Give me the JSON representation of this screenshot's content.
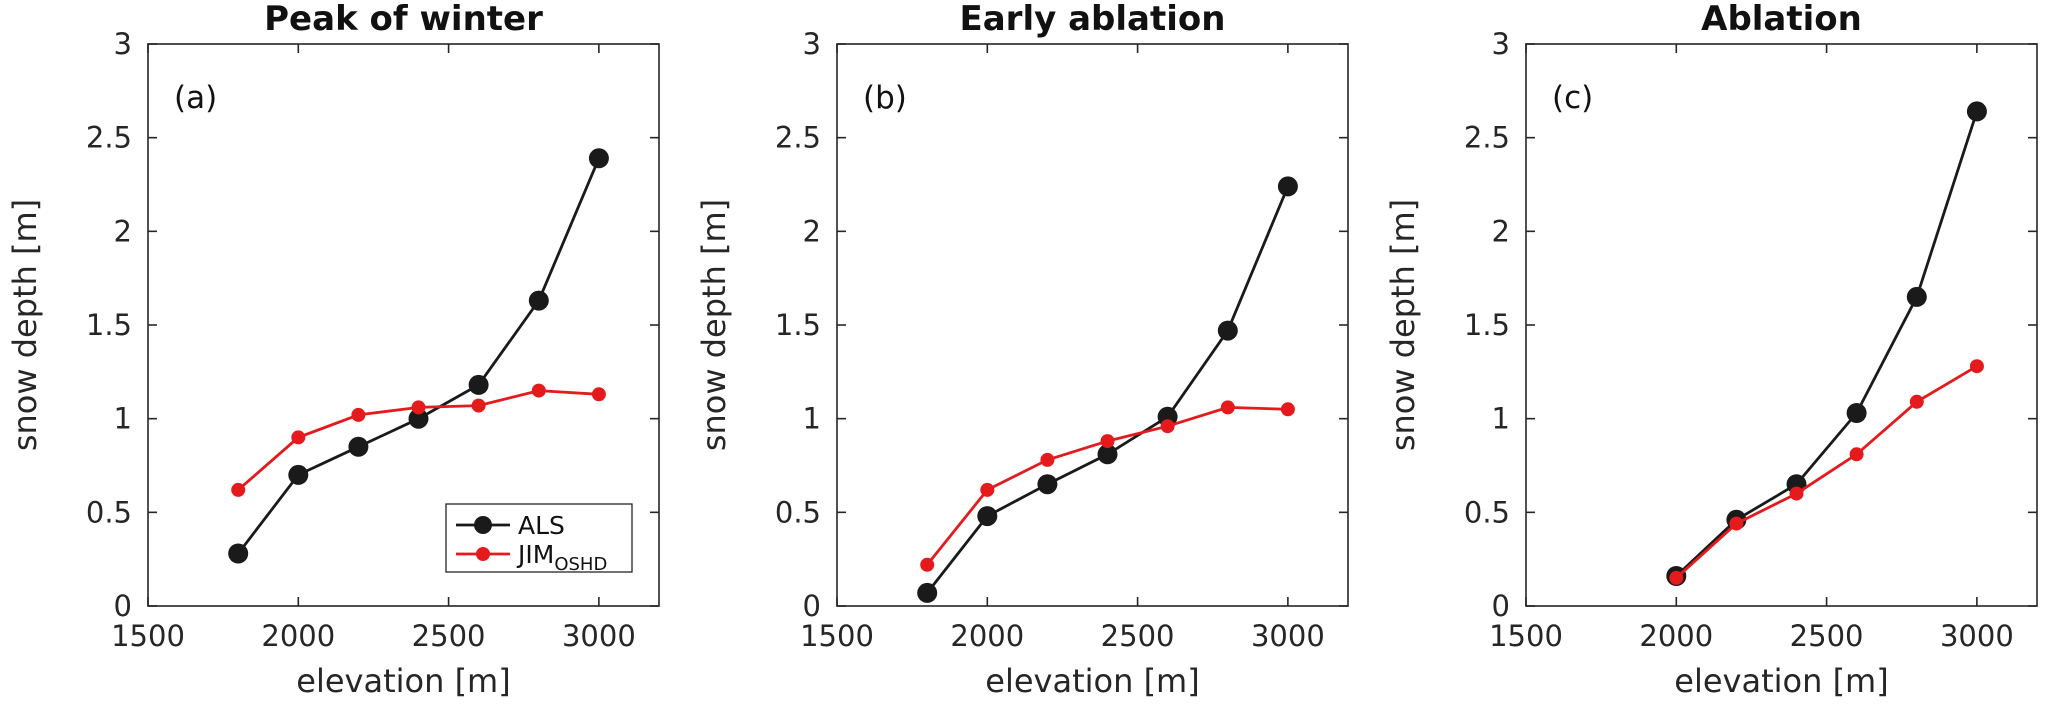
{
  "figure": {
    "background": "#ffffff",
    "axis_color": "#262626",
    "als_color": "#1a1a1a",
    "jim_color": "#e41a1c"
  },
  "legend": {
    "entries": [
      {
        "label": "ALS",
        "sub": "",
        "color": "#1a1a1a",
        "marker_radius": 9
      },
      {
        "label": "JIM",
        "sub": "OSHD",
        "color": "#e41a1c",
        "marker_radius": 7
      }
    ]
  },
  "chart_data": [
    {
      "type": "line",
      "panel_label": "(a)",
      "title": "Peak of winter",
      "xlabel": "elevation [m]",
      "ylabel": "snow depth [m]",
      "xlim": [
        1500,
        3200
      ],
      "ylim": [
        0,
        3
      ],
      "xticks": [
        1500,
        2000,
        2500,
        3000
      ],
      "yticks": [
        0,
        0.5,
        1,
        1.5,
        2,
        2.5,
        3
      ],
      "ytick_labels": [
        "0",
        "0.5",
        "1",
        "1.5",
        "2",
        "2.5",
        "3"
      ],
      "grid": false,
      "legend_visible": true,
      "legend_position": "lower right",
      "x": [
        1800,
        2000,
        2200,
        2400,
        2600,
        2800,
        3000
      ],
      "series": [
        {
          "name": "ALS",
          "color": "#1a1a1a",
          "marker_radius": 10,
          "values": [
            0.28,
            0.7,
            0.85,
            1.0,
            1.18,
            1.63,
            2.39
          ]
        },
        {
          "name": "JIM_OSHD",
          "color": "#e41a1c",
          "marker_radius": 7,
          "values": [
            0.62,
            0.9,
            1.02,
            1.06,
            1.07,
            1.15,
            1.13
          ]
        }
      ]
    },
    {
      "type": "line",
      "panel_label": "(b)",
      "title": "Early ablation",
      "xlabel": "elevation [m]",
      "ylabel": "snow depth [m]",
      "xlim": [
        1500,
        3200
      ],
      "ylim": [
        0,
        3
      ],
      "xticks": [
        1500,
        2000,
        2500,
        3000
      ],
      "yticks": [
        0,
        0.5,
        1,
        1.5,
        2,
        2.5,
        3
      ],
      "ytick_labels": [
        "0",
        "0.5",
        "1",
        "1.5",
        "2",
        "2.5",
        "3"
      ],
      "grid": false,
      "legend_visible": false,
      "legend_position": "",
      "x": [
        1800,
        2000,
        2200,
        2400,
        2600,
        2800,
        3000
      ],
      "series": [
        {
          "name": "ALS",
          "color": "#1a1a1a",
          "marker_radius": 10,
          "values": [
            0.07,
            0.48,
            0.65,
            0.81,
            1.01,
            1.47,
            2.24
          ]
        },
        {
          "name": "JIM_OSHD",
          "color": "#e41a1c",
          "marker_radius": 7,
          "values": [
            0.22,
            0.62,
            0.78,
            0.88,
            0.96,
            1.06,
            1.05
          ]
        }
      ]
    },
    {
      "type": "line",
      "panel_label": "(c)",
      "title": "Ablation",
      "xlabel": "elevation [m]",
      "ylabel": "snow depth [m]",
      "xlim": [
        1500,
        3200
      ],
      "ylim": [
        0,
        3
      ],
      "xticks": [
        1500,
        2000,
        2500,
        3000
      ],
      "yticks": [
        0,
        0.5,
        1,
        1.5,
        2,
        2.5,
        3
      ],
      "ytick_labels": [
        "0",
        "0.5",
        "1",
        "1.5",
        "2",
        "2.5",
        "3"
      ],
      "grid": false,
      "legend_visible": false,
      "legend_position": "",
      "x": [
        2000,
        2200,
        2400,
        2600,
        2800,
        3000
      ],
      "series": [
        {
          "name": "ALS",
          "color": "#1a1a1a",
          "marker_radius": 10,
          "values": [
            0.16,
            0.46,
            0.65,
            1.03,
            1.65,
            2.64
          ]
        },
        {
          "name": "JIM_OSHD",
          "color": "#e41a1c",
          "marker_radius": 7,
          "values": [
            0.15,
            0.44,
            0.6,
            0.81,
            1.09,
            1.28
          ]
        }
      ]
    }
  ]
}
